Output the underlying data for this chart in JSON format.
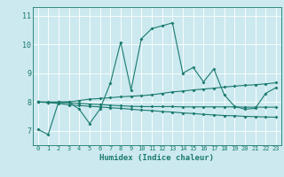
{
  "xlabel": "Humidex (Indice chaleur)",
  "xlim": [
    -0.5,
    23.5
  ],
  "ylim": [
    6.5,
    11.3
  ],
  "yticks": [
    7,
    8,
    9,
    10,
    11
  ],
  "xticks": [
    0,
    1,
    2,
    3,
    4,
    5,
    6,
    7,
    8,
    9,
    10,
    11,
    12,
    13,
    14,
    15,
    16,
    17,
    18,
    19,
    20,
    21,
    22,
    23
  ],
  "bg_color": "#cce9ef",
  "line_color": "#1a7a6e",
  "grid_color": "#ffffff",
  "lines": [
    [
      7.05,
      6.87,
      8.0,
      8.0,
      7.75,
      7.25,
      7.75,
      8.65,
      10.08,
      8.42,
      10.2,
      10.55,
      10.65,
      10.75,
      9.0,
      9.2,
      8.7,
      9.15,
      8.25,
      7.85,
      7.75,
      7.78,
      8.3,
      8.5
    ],
    [
      8.0,
      8.0,
      8.0,
      8.0,
      8.05,
      8.1,
      8.12,
      8.15,
      8.18,
      8.2,
      8.22,
      8.25,
      8.3,
      8.35,
      8.38,
      8.42,
      8.45,
      8.48,
      8.52,
      8.55,
      8.58,
      8.6,
      8.63,
      8.67
    ],
    [
      8.0,
      7.98,
      7.95,
      7.9,
      7.88,
      7.85,
      7.83,
      7.8,
      7.78,
      7.75,
      7.72,
      7.7,
      7.67,
      7.65,
      7.62,
      7.6,
      7.57,
      7.55,
      7.53,
      7.52,
      7.5,
      7.49,
      7.48,
      7.47
    ],
    [
      8.0,
      7.99,
      7.98,
      7.97,
      7.96,
      7.93,
      7.91,
      7.89,
      7.87,
      7.85,
      7.84,
      7.84,
      7.84,
      7.84,
      7.83,
      7.83,
      7.83,
      7.83,
      7.83,
      7.83,
      7.82,
      7.82,
      7.82,
      7.82
    ]
  ]
}
